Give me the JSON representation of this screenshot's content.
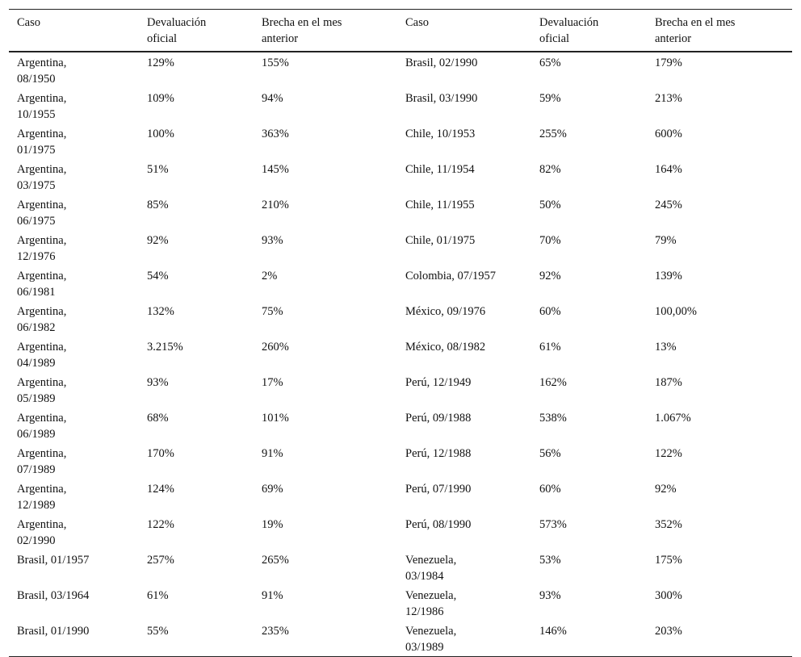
{
  "table": {
    "header": [
      "Caso",
      "Devaluación\noficial",
      "Brecha en el mes\nanterior",
      "Caso",
      "Devaluación\noficial",
      "Brecha en el mes\nanterior"
    ],
    "rows": [
      [
        "Argentina,\n08/1950",
        "129%",
        "155%",
        "Brasil, 02/1990",
        "65%",
        "179%"
      ],
      [
        "Argentina,\n10/1955",
        "109%",
        "94%",
        "Brasil, 03/1990",
        "59%",
        "213%"
      ],
      [
        "Argentina,\n01/1975",
        "100%",
        "363%",
        "Chile, 10/1953",
        "255%",
        "600%"
      ],
      [
        "Argentina,\n03/1975",
        "51%",
        "145%",
        "Chile, 11/1954",
        "82%",
        "164%"
      ],
      [
        "Argentina,\n06/1975",
        "85%",
        "210%",
        "Chile, 11/1955",
        "50%",
        "245%"
      ],
      [
        "Argentina,\n12/1976",
        "92%",
        "93%",
        "Chile, 01/1975",
        "70%",
        "79%"
      ],
      [
        "Argentina,\n06/1981",
        "54%",
        "2%",
        "Colombia, 07/1957",
        "92%",
        "139%"
      ],
      [
        "Argentina,\n06/1982",
        "132%",
        "75%",
        "México, 09/1976",
        "60%",
        "100,00%"
      ],
      [
        "Argentina,\n04/1989",
        "3.215%",
        "260%",
        "México, 08/1982",
        "61%",
        "13%"
      ],
      [
        "Argentina,\n05/1989",
        "93%",
        "17%",
        "Perú, 12/1949",
        "162%",
        "187%"
      ],
      [
        "Argentina,\n06/1989",
        "68%",
        "101%",
        "Perú, 09/1988",
        "538%",
        "1.067%"
      ],
      [
        "Argentina,\n07/1989",
        "170%",
        "91%",
        "Perú, 12/1988",
        "56%",
        "122%"
      ],
      [
        "Argentina,\n12/1989",
        "124%",
        "69%",
        "Perú, 07/1990",
        "60%",
        "92%"
      ],
      [
        "Argentina,\n02/1990",
        "122%",
        "19%",
        "Perú, 08/1990",
        "573%",
        "352%"
      ],
      [
        "Brasil, 01/1957",
        "257%",
        "265%",
        "Venezuela,\n03/1984",
        "53%",
        "175%"
      ],
      [
        "Brasil, 03/1964",
        "61%",
        "91%",
        "Venezuela,\n12/1986",
        "93%",
        "300%"
      ],
      [
        "Brasil, 01/1990",
        "55%",
        "235%",
        "Venezuela,\n03/1989",
        "146%",
        "203%"
      ]
    ]
  }
}
